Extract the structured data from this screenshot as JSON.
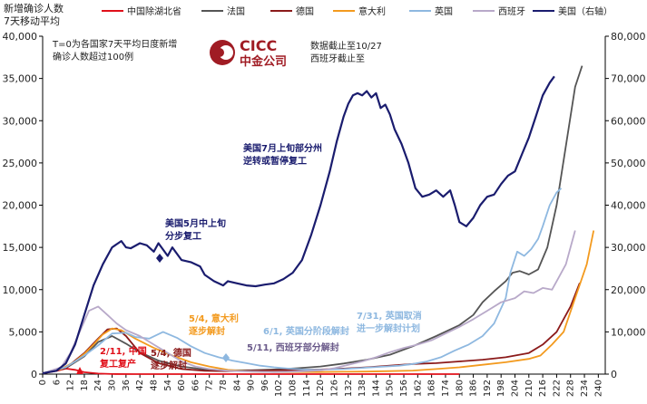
{
  "chart_data": {
    "type": "line",
    "ytitle_left": [
      "新增确诊人数",
      "7天移动平均"
    ],
    "note": [
      "T=0为各国家7天平均日度新增",
      "确诊人数超过100例"
    ],
    "source_note": [
      "数据截止至10/27",
      "西班牙截止至"
    ],
    "logo": {
      "text_top": "CICC",
      "text_bottom": "中金公司",
      "color": "#a01c24"
    },
    "x_ticks": [
      0,
      6,
      12,
      18,
      24,
      30,
      36,
      42,
      48,
      54,
      60,
      66,
      72,
      78,
      84,
      90,
      96,
      102,
      108,
      114,
      120,
      126,
      132,
      138,
      144,
      150,
      156,
      162,
      168,
      174,
      180,
      186,
      192,
      198,
      204,
      210,
      216,
      222,
      228,
      234,
      240
    ],
    "xlim": [
      0,
      243
    ],
    "y_left": {
      "ticks": [
        "0",
        "5,000",
        "10,000",
        "15,000",
        "20,000",
        "25,000",
        "30,000",
        "35,000",
        "40,000"
      ],
      "min": 0,
      "max": 40000
    },
    "y_right": {
      "ticks": [
        "0",
        "10,000",
        "20,000",
        "30,000",
        "40,000",
        "50,000",
        "60,000",
        "70,000",
        "80,000"
      ],
      "min": 0,
      "max": 80000
    },
    "series": [
      {
        "name": "中国除湖北省",
        "color": "#e0101a",
        "axis": "left",
        "points": [
          [
            0,
            100
          ],
          [
            6,
            380
          ],
          [
            10,
            650
          ],
          [
            14,
            500
          ],
          [
            18,
            230
          ],
          [
            24,
            60
          ],
          [
            30,
            15
          ],
          [
            40,
            0
          ],
          [
            100,
            0
          ],
          [
            180,
            0
          ]
        ]
      },
      {
        "name": "法国",
        "color": "#555555",
        "axis": "left",
        "points": [
          [
            0,
            100
          ],
          [
            10,
            700
          ],
          [
            18,
            2100
          ],
          [
            24,
            3800
          ],
          [
            30,
            4500
          ],
          [
            36,
            3600
          ],
          [
            42,
            2600
          ],
          [
            50,
            1600
          ],
          [
            60,
            900
          ],
          [
            70,
            550
          ],
          [
            80,
            450
          ],
          [
            90,
            450
          ],
          [
            100,
            550
          ],
          [
            110,
            700
          ],
          [
            120,
            900
          ],
          [
            130,
            1250
          ],
          [
            140,
            1700
          ],
          [
            150,
            2300
          ],
          [
            160,
            3300
          ],
          [
            170,
            4500
          ],
          [
            180,
            5800
          ],
          [
            186,
            7000
          ],
          [
            190,
            8500
          ],
          [
            195,
            9800
          ],
          [
            200,
            11000
          ],
          [
            203,
            12000
          ],
          [
            206,
            12200
          ],
          [
            210,
            11800
          ],
          [
            214,
            12400
          ],
          [
            218,
            15000
          ],
          [
            222,
            20000
          ],
          [
            226,
            27000
          ],
          [
            230,
            34000
          ],
          [
            233,
            36500
          ]
        ]
      },
      {
        "name": "德国",
        "color": "#8b1a1a",
        "axis": "left",
        "points": [
          [
            0,
            100
          ],
          [
            10,
            700
          ],
          [
            18,
            2500
          ],
          [
            24,
            4200
          ],
          [
            28,
            5300
          ],
          [
            32,
            5400
          ],
          [
            36,
            4500
          ],
          [
            42,
            2500
          ],
          [
            50,
            1300
          ],
          [
            60,
            600
          ],
          [
            70,
            400
          ],
          [
            80,
            350
          ],
          [
            90,
            400
          ],
          [
            100,
            450
          ],
          [
            110,
            500
          ],
          [
            120,
            550
          ],
          [
            130,
            650
          ],
          [
            140,
            800
          ],
          [
            150,
            1000
          ],
          [
            160,
            1200
          ],
          [
            170,
            1300
          ],
          [
            180,
            1500
          ],
          [
            190,
            1700
          ],
          [
            200,
            2000
          ],
          [
            210,
            2500
          ],
          [
            216,
            3500
          ],
          [
            222,
            5000
          ],
          [
            228,
            8000
          ],
          [
            232,
            10800
          ]
        ]
      },
      {
        "name": "意大利",
        "color": "#f39a1e",
        "axis": "left",
        "points": [
          [
            0,
            100
          ],
          [
            8,
            600
          ],
          [
            14,
            1500
          ],
          [
            18,
            2400
          ],
          [
            22,
            3500
          ],
          [
            26,
            4700
          ],
          [
            30,
            5400
          ],
          [
            34,
            5200
          ],
          [
            40,
            4200
          ],
          [
            48,
            3100
          ],
          [
            56,
            2200
          ],
          [
            64,
            1400
          ],
          [
            72,
            900
          ],
          [
            80,
            500
          ],
          [
            90,
            300
          ],
          [
            100,
            250
          ],
          [
            110,
            250
          ],
          [
            120,
            250
          ],
          [
            130,
            280
          ],
          [
            140,
            300
          ],
          [
            150,
            350
          ],
          [
            160,
            420
          ],
          [
            170,
            600
          ],
          [
            180,
            800
          ],
          [
            190,
            1100
          ],
          [
            200,
            1400
          ],
          [
            210,
            1800
          ],
          [
            215,
            2200
          ],
          [
            220,
            3500
          ],
          [
            225,
            5000
          ],
          [
            230,
            9000
          ],
          [
            235,
            13000
          ],
          [
            238,
            17000
          ]
        ]
      },
      {
        "name": "英国",
        "color": "#8eb8e0",
        "axis": "left",
        "points": [
          [
            0,
            100
          ],
          [
            10,
            800
          ],
          [
            18,
            2200
          ],
          [
            24,
            3400
          ],
          [
            30,
            4800
          ],
          [
            36,
            4900
          ],
          [
            40,
            4400
          ],
          [
            46,
            4200
          ],
          [
            52,
            5000
          ],
          [
            58,
            4300
          ],
          [
            64,
            3300
          ],
          [
            70,
            2500
          ],
          [
            76,
            2000
          ],
          [
            82,
            1600
          ],
          [
            88,
            1300
          ],
          [
            94,
            1000
          ],
          [
            100,
            800
          ],
          [
            106,
            650
          ],
          [
            112,
            550
          ],
          [
            118,
            500
          ],
          [
            124,
            550
          ],
          [
            130,
            600
          ],
          [
            136,
            700
          ],
          [
            142,
            800
          ],
          [
            148,
            900
          ],
          [
            154,
            1000
          ],
          [
            160,
            1200
          ],
          [
            166,
            1500
          ],
          [
            172,
            2000
          ],
          [
            178,
            2800
          ],
          [
            184,
            3500
          ],
          [
            190,
            4500
          ],
          [
            195,
            6000
          ],
          [
            200,
            9000
          ],
          [
            202,
            12000
          ],
          [
            205,
            14500
          ],
          [
            208,
            14000
          ],
          [
            211,
            14800
          ],
          [
            214,
            16000
          ],
          [
            216,
            17500
          ],
          [
            219,
            20000
          ],
          [
            222,
            21500
          ],
          [
            224,
            22000
          ]
        ]
      },
      {
        "name": "西班牙",
        "color": "#b8a9c9",
        "axis": "left",
        "points": [
          [
            0,
            100
          ],
          [
            8,
            800
          ],
          [
            12,
            2500
          ],
          [
            16,
            5000
          ],
          [
            20,
            7500
          ],
          [
            24,
            8000
          ],
          [
            28,
            7000
          ],
          [
            32,
            6000
          ],
          [
            36,
            5200
          ],
          [
            42,
            4500
          ],
          [
            48,
            3500
          ],
          [
            54,
            2500
          ],
          [
            60,
            1500
          ],
          [
            66,
            900
          ],
          [
            72,
            600
          ],
          [
            80,
            400
          ],
          [
            90,
            300
          ],
          [
            100,
            250
          ],
          [
            110,
            300
          ],
          [
            120,
            450
          ],
          [
            126,
            700
          ],
          [
            132,
            1100
          ],
          [
            138,
            1500
          ],
          [
            144,
            2000
          ],
          [
            150,
            2600
          ],
          [
            156,
            3100
          ],
          [
            162,
            3500
          ],
          [
            168,
            4000
          ],
          [
            174,
            4800
          ],
          [
            180,
            5600
          ],
          [
            186,
            6500
          ],
          [
            192,
            7500
          ],
          [
            198,
            8500
          ],
          [
            204,
            9000
          ],
          [
            208,
            9800
          ],
          [
            212,
            9600
          ],
          [
            216,
            10200
          ],
          [
            220,
            10000
          ],
          [
            223,
            11500
          ],
          [
            226,
            13000
          ],
          [
            228,
            15000
          ],
          [
            230,
            17000
          ]
        ]
      },
      {
        "name": "美国（右轴）",
        "color": "#1a1c6e",
        "axis": "right",
        "points": [
          [
            0,
            200
          ],
          [
            6,
            800
          ],
          [
            10,
            2500
          ],
          [
            14,
            7000
          ],
          [
            18,
            14000
          ],
          [
            22,
            21000
          ],
          [
            26,
            26000
          ],
          [
            30,
            30000
          ],
          [
            34,
            31500
          ],
          [
            36,
            30000
          ],
          [
            38,
            29800
          ],
          [
            42,
            31000
          ],
          [
            45,
            30500
          ],
          [
            48,
            29000
          ],
          [
            50,
            31000
          ],
          [
            54,
            28000
          ],
          [
            56,
            30000
          ],
          [
            60,
            27000
          ],
          [
            64,
            26500
          ],
          [
            68,
            25500
          ],
          [
            70,
            23500
          ],
          [
            74,
            22000
          ],
          [
            78,
            21000
          ],
          [
            80,
            22000
          ],
          [
            84,
            21500
          ],
          [
            88,
            21000
          ],
          [
            92,
            20800
          ],
          [
            96,
            21200
          ],
          [
            100,
            21500
          ],
          [
            104,
            22500
          ],
          [
            108,
            24000
          ],
          [
            112,
            27000
          ],
          [
            116,
            33000
          ],
          [
            120,
            40000
          ],
          [
            124,
            48000
          ],
          [
            127,
            55000
          ],
          [
            130,
            61000
          ],
          [
            132,
            64000
          ],
          [
            134,
            66000
          ],
          [
            136,
            66500
          ],
          [
            138,
            66000
          ],
          [
            140,
            67000
          ],
          [
            142,
            65500
          ],
          [
            144,
            66500
          ],
          [
            146,
            63000
          ],
          [
            148,
            63800
          ],
          [
            150,
            61500
          ],
          [
            152,
            58000
          ],
          [
            155,
            54500
          ],
          [
            158,
            50000
          ],
          [
            161,
            44000
          ],
          [
            164,
            42000
          ],
          [
            167,
            42500
          ],
          [
            170,
            43500
          ],
          [
            173,
            42000
          ],
          [
            176,
            43500
          ],
          [
            178,
            40000
          ],
          [
            180,
            36000
          ],
          [
            183,
            35000
          ],
          [
            186,
            37000
          ],
          [
            189,
            40000
          ],
          [
            192,
            42000
          ],
          [
            195,
            42500
          ],
          [
            198,
            45000
          ],
          [
            201,
            47000
          ],
          [
            204,
            48000
          ],
          [
            207,
            52000
          ],
          [
            210,
            56000
          ],
          [
            213,
            61000
          ],
          [
            216,
            66000
          ],
          [
            219,
            69000
          ],
          [
            221,
            70500
          ]
        ]
      }
    ],
    "annotations": [
      {
        "text": [
          "美国7月上旬部分州",
          "逆转或暂停复工"
        ],
        "color": "#1a1c6e"
      },
      {
        "text": [
          "美国5月中上旬",
          "分步复工"
        ],
        "color": "#1a1c6e"
      },
      {
        "text": [
          "5/4, 意大利",
          "逐步解封"
        ],
        "color": "#f39a1e"
      },
      {
        "text": [
          "6/1, 英国分阶段解封"
        ],
        "color": "#8eb8e0"
      },
      {
        "text": [
          "7/31, 英国取消",
          "进一步解封计划"
        ],
        "color": "#8eb8e0"
      },
      {
        "text": [
          "5/11, 西班牙部分解封"
        ],
        "color": "#6a5a8a"
      },
      {
        "text": [
          "2/11, 中国",
          "复工复产"
        ],
        "color": "#e0101a"
      },
      {
        "text": [
          "5/4, 德国",
          "逐步解封"
        ],
        "color": "#8b1a1a"
      }
    ]
  }
}
